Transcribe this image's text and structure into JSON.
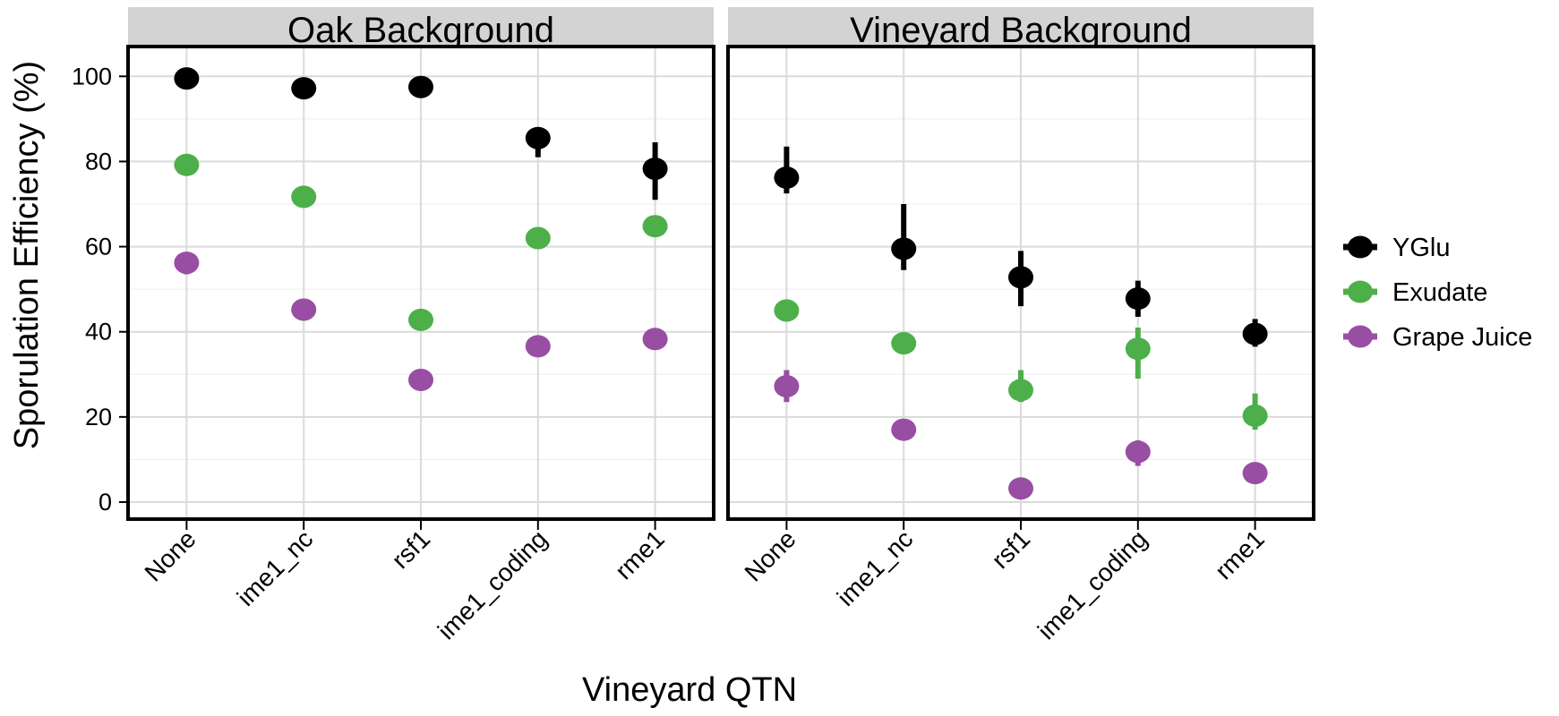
{
  "chart_data": {
    "type": "scatter",
    "ylabel": "Sporulation Efficiency (%)",
    "xlabel": "Vineyard QTN",
    "ylim": [
      -4,
      107
    ],
    "yticks": [
      0,
      20,
      40,
      60,
      80,
      100
    ],
    "categories": [
      "None",
      "ime1_nc",
      "rsf1",
      "ime1_coding",
      "rme1"
    ],
    "grid": true,
    "legend_position": "right",
    "panels": [
      {
        "title": "Oak Background",
        "series": [
          {
            "name": "YGlu",
            "color": "#000000",
            "values": [
              99.5,
              97.2,
              97.5,
              85.5,
              78.3
            ],
            "err_low": [
              99.5,
              97.2,
              97.5,
              81.0,
              71.0
            ],
            "err_high": [
              99.5,
              97.2,
              97.5,
              85.5,
              84.5
            ]
          },
          {
            "name": "Exudate",
            "color": "#4daf4a",
            "values": [
              79.2,
              71.7,
              42.8,
              62.0,
              64.8
            ],
            "err_low": [
              79.2,
              71.7,
              42.8,
              62.0,
              64.8
            ],
            "err_high": [
              79.2,
              71.7,
              42.8,
              62.0,
              64.8
            ]
          },
          {
            "name": "Grape Juice",
            "color": "#984ea3",
            "values": [
              56.2,
              45.2,
              28.7,
              36.6,
              38.3
            ],
            "err_low": [
              53.5,
              45.2,
              28.7,
              36.6,
              38.3
            ],
            "err_high": [
              56.2,
              45.2,
              28.7,
              36.6,
              38.3
            ]
          }
        ]
      },
      {
        "title": "Vineyard Background",
        "series": [
          {
            "name": "YGlu",
            "color": "#000000",
            "values": [
              76.2,
              59.5,
              52.8,
              47.8,
              39.5
            ],
            "err_low": [
              72.5,
              54.5,
              46.0,
              43.5,
              36.5
            ],
            "err_high": [
              83.5,
              70.0,
              59.0,
              52.0,
              43.0
            ]
          },
          {
            "name": "Exudate",
            "color": "#4daf4a",
            "values": [
              45.0,
              37.3,
              26.3,
              36.0,
              20.3
            ],
            "err_low": [
              45.0,
              37.3,
              23.5,
              29.0,
              17.0
            ],
            "err_high": [
              45.0,
              37.3,
              31.0,
              41.0,
              25.5
            ]
          },
          {
            "name": "Grape Juice",
            "color": "#984ea3",
            "values": [
              27.2,
              17.0,
              3.2,
              11.8,
              6.8
            ],
            "err_low": [
              23.5,
              17.0,
              3.2,
              8.5,
              6.8
            ],
            "err_high": [
              31.0,
              17.0,
              3.2,
              14.5,
              6.8
            ]
          }
        ]
      }
    ],
    "legend": [
      "YGlu",
      "Exudate",
      "Grape Juice"
    ]
  }
}
